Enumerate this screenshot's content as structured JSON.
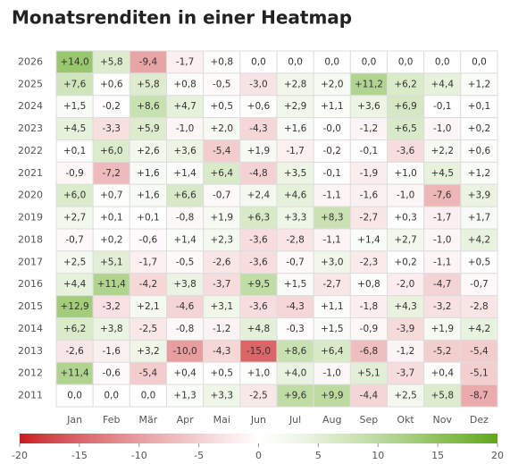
{
  "chart_data": {
    "type": "heatmap",
    "title": "Monatsrenditen in einer Heatmap",
    "x_categories": [
      "Jan",
      "Feb",
      "Mär",
      "Apr",
      "Mai",
      "Jun",
      "Jul",
      "Aug",
      "Sep",
      "Okt",
      "Nov",
      "Dez"
    ],
    "y_categories": [
      "2026",
      "2025",
      "2024",
      "2023",
      "2022",
      "2021",
      "2020",
      "2019",
      "2018",
      "2017",
      "2016",
      "2015",
      "2014",
      "2013",
      "2012",
      "2011"
    ],
    "values": [
      [
        14.0,
        5.8,
        -9.4,
        -1.7,
        0.8,
        0,
        0,
        0,
        0,
        0,
        0,
        0
      ],
      [
        7.6,
        0.6,
        5.8,
        0.8,
        -0.5,
        -3.0,
        2.8,
        2.0,
        11.2,
        6.2,
        4.4,
        1.2
      ],
      [
        1.5,
        -0.2,
        8.6,
        4.7,
        0.5,
        0.6,
        2.9,
        1.1,
        3.6,
        6.9,
        -0.1,
        0.1
      ],
      [
        4.5,
        -3.3,
        5.9,
        -1.0,
        2.0,
        -4.3,
        1.6,
        0,
        -1.2,
        6.5,
        -1.0,
        0.2
      ],
      [
        0.1,
        6.0,
        2.6,
        3.6,
        -5.4,
        1.9,
        -1.7,
        -0.2,
        -0.1,
        -3.6,
        2.2,
        0.6
      ],
      [
        -0.9,
        -7.2,
        1.6,
        1.4,
        6.4,
        -4.8,
        3.5,
        -0.1,
        -1.9,
        1.0,
        4.5,
        1.2
      ],
      [
        6.0,
        0.7,
        1.6,
        6.6,
        -0.7,
        2.4,
        4.6,
        -1.1,
        -1.6,
        -1.0,
        -7.6,
        3.9
      ],
      [
        2.7,
        0.1,
        0.1,
        -0.8,
        1.9,
        6.3,
        3.3,
        8.3,
        -2.7,
        0.3,
        -1.7,
        1.7
      ],
      [
        -0.7,
        0.2,
        -0.6,
        1.4,
        2.3,
        -3.6,
        -2.8,
        -1.1,
        1.4,
        2.7,
        -1.0,
        4.2
      ],
      [
        2.5,
        5.1,
        -1.7,
        -0.5,
        -2.6,
        -3.6,
        -0.7,
        3.0,
        -2.3,
        0.2,
        -1.1,
        0.5
      ],
      [
        4.4,
        11.4,
        -4.2,
        3.8,
        -3.7,
        9.5,
        1.5,
        -2.7,
        0.8,
        -2.0,
        -4.7,
        -0.7
      ],
      [
        12.9,
        -3.2,
        2.1,
        -4.6,
        3.1,
        -3.6,
        -4.3,
        1.1,
        -1.8,
        4.3,
        -3.2,
        -2.8
      ],
      [
        6.2,
        3.8,
        -2.5,
        -0.8,
        -1.2,
        4.8,
        -0.3,
        1.5,
        -0.9,
        -3.9,
        1.9,
        4.2
      ],
      [
        -2.6,
        -1.6,
        3.2,
        -10.0,
        -4.3,
        -15.0,
        8.6,
        6.4,
        -6.8,
        -1.2,
        -5.2,
        -5.4
      ],
      [
        11.4,
        -0.6,
        -5.4,
        0.4,
        0.5,
        1.0,
        4.0,
        -1.0,
        5.1,
        -3.7,
        0.4,
        -5.1
      ],
      [
        0,
        0,
        0,
        1.3,
        3.3,
        -2.5,
        9.6,
        9.9,
        -4.4,
        2.5,
        5.8,
        -8.7
      ]
    ],
    "value_labels": [
      [
        "+14,0",
        "+5,8",
        "-9,4",
        "-1,7",
        "+0,8",
        "0,0",
        "0,0",
        "0,0",
        "0,0",
        "0,0",
        "0,0",
        "0,0"
      ],
      [
        "+7,6",
        "+0,6",
        "+5,8",
        "+0,8",
        "-0,5",
        "-3,0",
        "+2,8",
        "+2,0",
        "+11,2",
        "+6,2",
        "+4,4",
        "+1,2"
      ],
      [
        "+1,5",
        "-0,2",
        "+8,6",
        "+4,7",
        "+0,5",
        "+0,6",
        "+2,9",
        "+1,1",
        "+3,6",
        "+6,9",
        "-0,1",
        "+0,1"
      ],
      [
        "+4,5",
        "-3,3",
        "+5,9",
        "-1,0",
        "+2,0",
        "-4,3",
        "+1,6",
        "-0,0",
        "-1,2",
        "+6,5",
        "-1,0",
        "+0,2"
      ],
      [
        "+0,1",
        "+6,0",
        "+2,6",
        "+3,6",
        "-5,4",
        "+1,9",
        "-1,7",
        "-0,2",
        "-0,1",
        "-3,6",
        "+2,2",
        "+0,6"
      ],
      [
        "-0,9",
        "-7,2",
        "+1,6",
        "+1,4",
        "+6,4",
        "-4,8",
        "+3,5",
        "-0,1",
        "-1,9",
        "+1,0",
        "+4,5",
        "+1,2"
      ],
      [
        "+6,0",
        "+0,7",
        "+1,6",
        "+6,6",
        "-0,7",
        "+2,4",
        "+4,6",
        "-1,1",
        "-1,6",
        "-1,0",
        "-7,6",
        "+3,9"
      ],
      [
        "+2,7",
        "+0,1",
        "+0,1",
        "-0,8",
        "+1,9",
        "+6,3",
        "+3,3",
        "+8,3",
        "-2,7",
        "+0,3",
        "-1,7",
        "+1,7"
      ],
      [
        "-0,7",
        "+0,2",
        "-0,6",
        "+1,4",
        "+2,3",
        "-3,6",
        "-2,8",
        "-1,1",
        "+1,4",
        "+2,7",
        "-1,0",
        "+4,2"
      ],
      [
        "+2,5",
        "+5,1",
        "-1,7",
        "-0,5",
        "-2,6",
        "-3,6",
        "-0,7",
        "+3,0",
        "-2,3",
        "+0,2",
        "-1,1",
        "+0,5"
      ],
      [
        "+4,4",
        "+11,4",
        "-4,2",
        "+3,8",
        "-3,7",
        "+9,5",
        "+1,5",
        "-2,7",
        "+0,8",
        "-2,0",
        "-4,7",
        "-0,7"
      ],
      [
        "+12,9",
        "-3,2",
        "+2,1",
        "-4,6",
        "+3,1",
        "-3,6",
        "-4,3",
        "+1,1",
        "-1,8",
        "+4,3",
        "-3,2",
        "-2,8"
      ],
      [
        "+6,2",
        "+3,8",
        "-2,5",
        "-0,8",
        "-1,2",
        "+4,8",
        "-0,3",
        "+1,5",
        "-0,9",
        "-3,9",
        "+1,9",
        "+4,2"
      ],
      [
        "-2,6",
        "-1,6",
        "+3,2",
        "-10,0",
        "-4,3",
        "-15,0",
        "+8,6",
        "+6,4",
        "-6,8",
        "-1,2",
        "-5,2",
        "-5,4"
      ],
      [
        "+11,4",
        "-0,6",
        "-5,4",
        "+0,4",
        "+0,5",
        "+1,0",
        "+4,0",
        "-1,0",
        "+5,1",
        "-3,7",
        "+0,4",
        "-5,1"
      ],
      [
        "0,0",
        "0,0",
        "0,0",
        "+1,3",
        "+3,3",
        "-2,5",
        "+9,6",
        "+9,9",
        "-4,4",
        "+2,5",
        "+5,8",
        "-8,7"
      ]
    ],
    "colors": {
      "low": "#c81a1e",
      "mid": "#ffffff",
      "high": "#5fa81b"
    },
    "clim": [
      -20,
      20
    ],
    "cticks": [
      -20,
      -15,
      -10,
      -5,
      0,
      5,
      10,
      15,
      20
    ]
  }
}
